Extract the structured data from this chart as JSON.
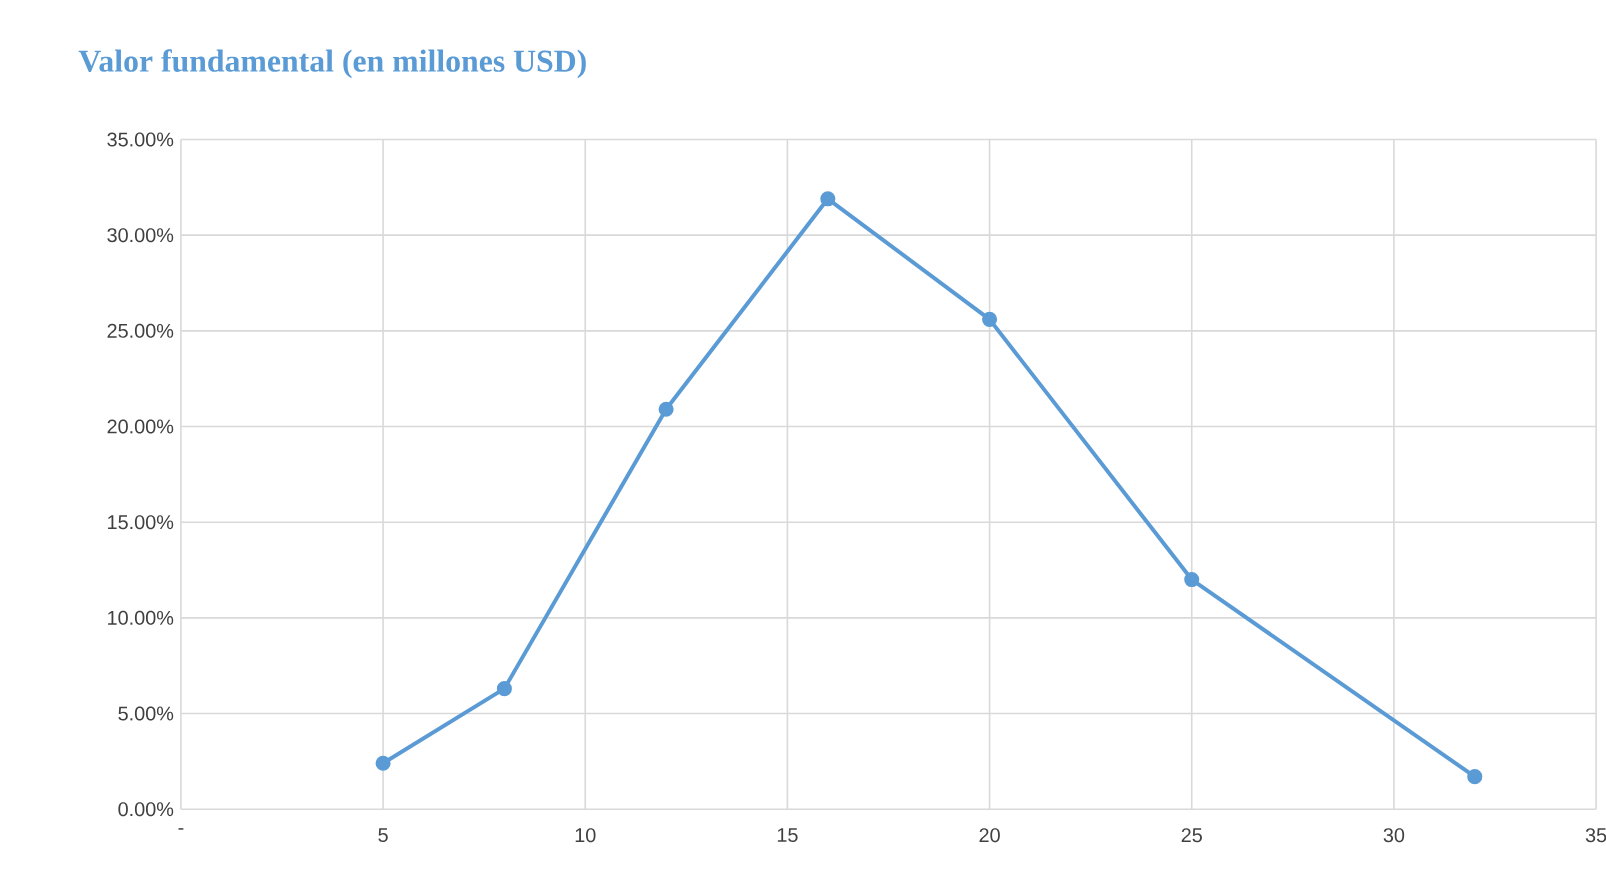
{
  "chart_data": {
    "type": "line",
    "title": "Valor fundamental (en millones USD)",
    "x": [
      5,
      8,
      12,
      16,
      20,
      25,
      32
    ],
    "series": [
      {
        "color": "#5b9bd5",
        "values": [
          2.4,
          6.3,
          20.9,
          31.9,
          25.6,
          12.0,
          1.7
        ]
      }
    ],
    "xlim": [
      0,
      35
    ],
    "xticks": [
      {
        "value": 0,
        "label": "-"
      },
      5,
      10,
      15,
      20,
      25,
      30,
      35
    ],
    "ylim": [
      0,
      35
    ],
    "yticks": [
      {
        "value": 0,
        "label": "0.00%"
      },
      {
        "value": 5,
        "label": "5.00%"
      },
      {
        "value": 10,
        "label": "10.00%"
      },
      {
        "value": 15,
        "label": "15.00%"
      },
      {
        "value": 20,
        "label": "20.00%"
      },
      {
        "value": 25,
        "label": "25.00%"
      },
      {
        "value": 30,
        "label": "30.00%"
      },
      {
        "value": 35,
        "label": "35.00%"
      }
    ],
    "grid": true,
    "marker": "circle",
    "line_style": "solid"
  }
}
